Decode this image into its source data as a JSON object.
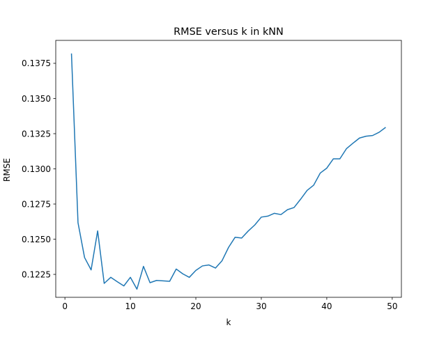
{
  "chart_data": {
    "type": "line",
    "title": "RMSE versus k in kNN",
    "xlabel": "k",
    "ylabel": "RMSE",
    "xlim": [
      -1.4,
      51.4
    ],
    "ylim": [
      0.12087,
      0.13913
    ],
    "x_ticks": [
      0,
      10,
      20,
      30,
      40,
      50
    ],
    "y_ticks": [
      0.1225,
      0.125,
      0.1275,
      0.13,
      0.1325,
      0.135,
      0.1375
    ],
    "x_tick_labels": [
      "0",
      "10",
      "20",
      "30",
      "40",
      "50"
    ],
    "y_tick_labels": [
      "0.1225",
      "0.1250",
      "0.1275",
      "0.1300",
      "0.1325",
      "0.1350",
      "0.1375"
    ],
    "grid": false,
    "line_color": "#1f77b4",
    "series": [
      {
        "x": [
          1,
          2,
          3,
          4,
          5,
          6,
          7,
          8,
          9,
          10,
          11,
          12,
          13,
          14,
          15,
          16,
          17,
          18,
          19,
          20,
          21,
          22,
          23,
          24,
          25,
          26,
          27,
          28,
          29,
          30,
          31,
          32,
          33,
          34,
          35,
          36,
          37,
          38,
          39,
          40,
          41,
          42,
          43,
          44,
          45,
          46,
          47,
          48,
          49
        ],
        "values": [
          0.1382,
          0.12617,
          0.1237,
          0.12282,
          0.12559,
          0.12186,
          0.12229,
          0.12198,
          0.12168,
          0.12229,
          0.12145,
          0.12307,
          0.12191,
          0.12207,
          0.12204,
          0.12201,
          0.12288,
          0.12254,
          0.12229,
          0.12278,
          0.1231,
          0.12317,
          0.12295,
          0.12347,
          0.12442,
          0.12514,
          0.12508,
          0.12558,
          0.12601,
          0.12657,
          0.12664,
          0.12684,
          0.12675,
          0.1271,
          0.12725,
          0.12784,
          0.12847,
          0.12884,
          0.1297,
          0.13005,
          0.13071,
          0.13071,
          0.13143,
          0.13182,
          0.13219,
          0.13232,
          0.13237,
          0.1326,
          0.13295
        ]
      }
    ]
  }
}
